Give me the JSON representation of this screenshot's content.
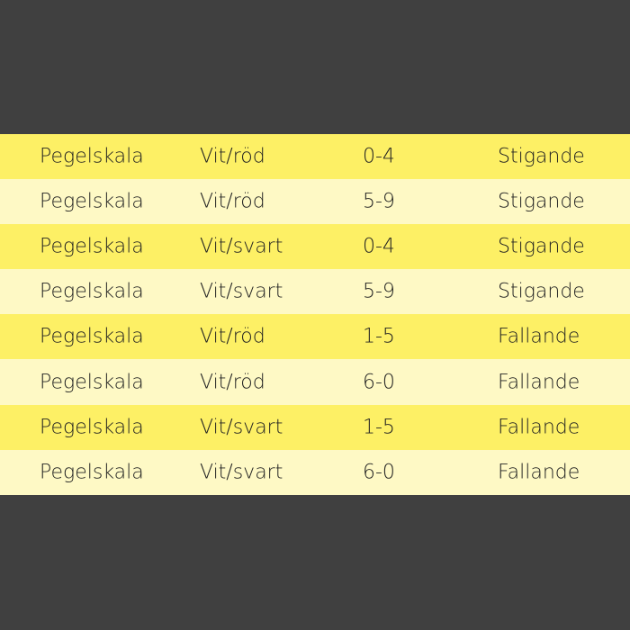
{
  "table": {
    "rows": [
      [
        "Pegelskala",
        "Vit/röd",
        "0-4",
        "Stigande"
      ],
      [
        "Pegelskala",
        "Vit/röd",
        "5-9",
        "Stigande"
      ],
      [
        "Pegelskala",
        "Vit/svart",
        "0-4",
        "Stigande"
      ],
      [
        "Pegelskala",
        "Vit/svart",
        "5-9",
        "Stigande"
      ],
      [
        "Pegelskala",
        "Vit/röd",
        "1-5",
        "Fallande"
      ],
      [
        "Pegelskala",
        "Vit/röd",
        "6-0",
        "Fallande"
      ],
      [
        "Pegelskala",
        "Vit/svart",
        "1-5",
        "Fallande"
      ],
      [
        "Pegelskala",
        "Vit/svart",
        "6-0",
        "Fallande"
      ]
    ]
  },
  "colors": {
    "background": "#404040",
    "row_odd": "#fdf065",
    "row_even": "#fef9c5",
    "text": "#222222"
  }
}
